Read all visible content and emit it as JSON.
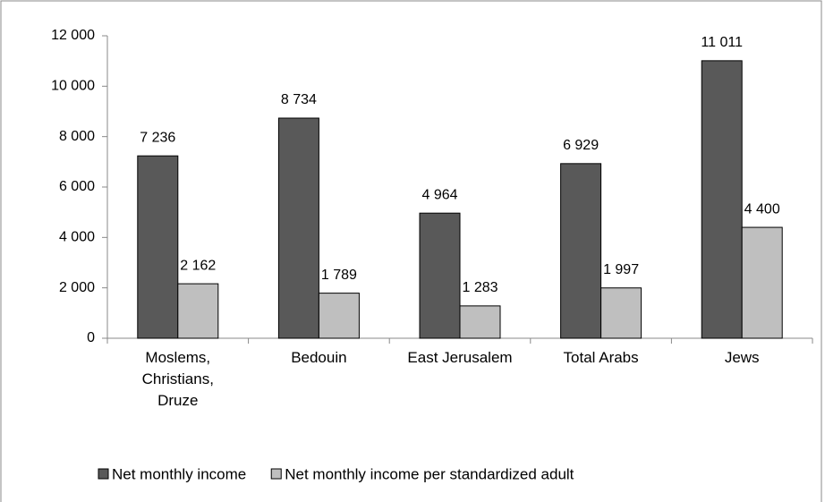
{
  "chart_data": {
    "type": "bar",
    "categories": [
      "Moslems, Christians, Druze",
      "Bedouin",
      "East Jerusalem",
      "Total Arabs",
      "Jews"
    ],
    "series": [
      {
        "name": "Net monthly income",
        "color": "#595959",
        "values": [
          7236,
          8734,
          4964,
          6929,
          11011
        ],
        "value_labels": [
          "7 236",
          "8 734",
          "4 964",
          "6 929",
          "11 011"
        ]
      },
      {
        "name": "Net monthly income per standardized adult",
        "color": "#bfbfbf",
        "values": [
          2162,
          1789,
          1283,
          1997,
          4400
        ],
        "value_labels": [
          "2 162",
          "1 789",
          "1 283",
          "1 997",
          "4 400"
        ]
      }
    ],
    "ylim": [
      0,
      12000
    ],
    "yticks": [
      0,
      {
        "value": 2000,
        "label": "2 000"
      },
      {
        "value": 4000,
        "label": "4 000"
      },
      {
        "value": 6000,
        "label": "6 000"
      },
      {
        "value": 8000,
        "label": "8 000"
      },
      {
        "value": 10000,
        "label": "10 000"
      },
      {
        "value": 12000,
        "label": "12 000"
      }
    ],
    "legend": "bottom"
  }
}
